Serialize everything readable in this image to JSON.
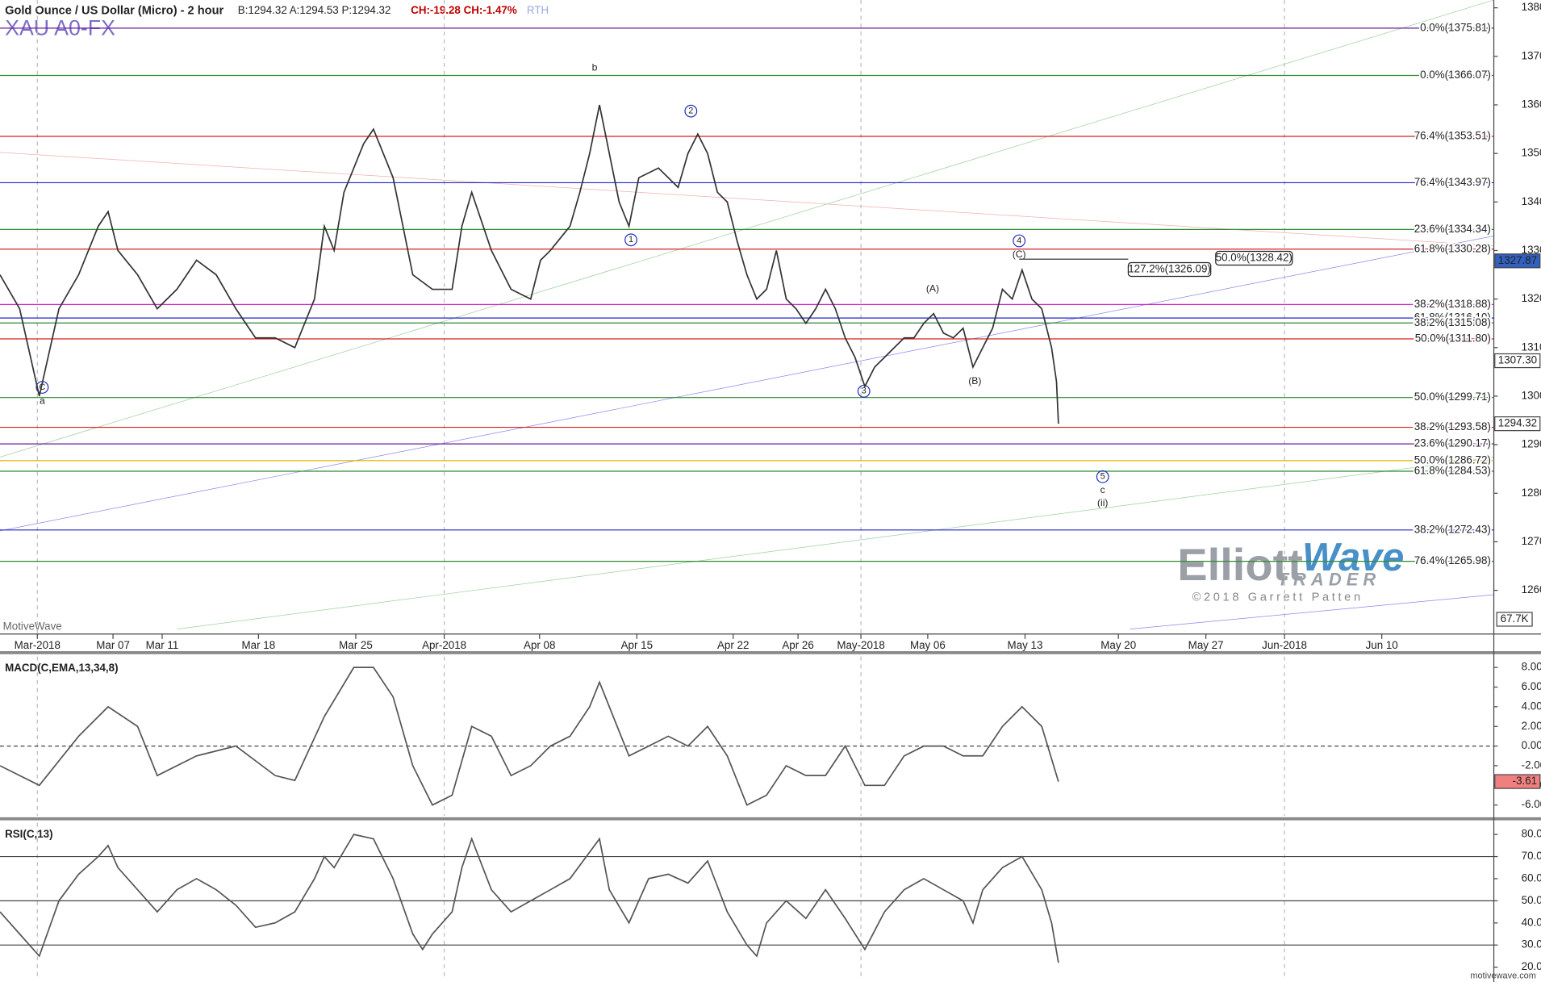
{
  "header": {
    "title": "Gold Ounce / US Dollar (Micro) - 2 hour",
    "quote": "B:1294.32 A:1294.53 P:1294.32",
    "change": "CH:-19.28 CH:-1.47%",
    "session": "RTH",
    "symbol": "XAU A0-FX",
    "watermark": "MotiveWave",
    "footer": "motivewave.com"
  },
  "logo": {
    "name1": "Elliott",
    "name2": "Wave",
    "sub": "TRADER",
    "copyright": "©2018 Garrett Patten"
  },
  "chart_data": [
    {
      "type": "line",
      "x": [
        0,
        2,
        4,
        6,
        8,
        10,
        11,
        12,
        14,
        16,
        18,
        20,
        22,
        24,
        26,
        28,
        30,
        32,
        33,
        34,
        35,
        37,
        38,
        39,
        40,
        41,
        42,
        44,
        46,
        47,
        48,
        50,
        52,
        54,
        55,
        56,
        58,
        59,
        60,
        61,
        62,
        63,
        64,
        65,
        67,
        69,
        70,
        71,
        72,
        73,
        74,
        75,
        76,
        77,
        78,
        79,
        80,
        81,
        82,
        83,
        84,
        85,
        86,
        87,
        88,
        89,
        90,
        91,
        92,
        93,
        94,
        95,
        96,
        97,
        98,
        99,
        100,
        101,
        102,
        103,
        104,
        105,
        106,
        107,
        107.5,
        107.7
      ],
      "series": [
        {
          "color": "#333333",
          "values": [
            1325,
            1318,
            1300,
            1318,
            1325,
            1335,
            1338,
            1330,
            1325,
            1318,
            1322,
            1328,
            1325,
            1318,
            1312,
            1312,
            1310,
            1320,
            1335,
            1330,
            1342,
            1352,
            1355,
            1350,
            1345,
            1335,
            1325,
            1322,
            1322,
            1335,
            1342,
            1330,
            1322,
            1320,
            1328,
            1330,
            1335,
            1342,
            1350,
            1360,
            1350,
            1340,
            1335,
            1345,
            1347,
            1343,
            1350,
            1354,
            1350,
            1342,
            1340,
            1332,
            1325,
            1320,
            1322,
            1330,
            1320,
            1318,
            1315,
            1318,
            1322,
            1318,
            1312,
            1308,
            1302,
            1306,
            1308,
            1310,
            1312,
            1312,
            1315,
            1317,
            1313,
            1312,
            1314,
            1306,
            1310,
            1314,
            1322,
            1320,
            1326,
            1320,
            1318,
            1310,
            1303,
            1294.32
          ]
        }
      ],
      "xlim": [
        0,
        152
      ],
      "ylim": [
        1251,
        1381.6
      ],
      "xticks": [
        {
          "value": 3.8,
          "label": "Mar-2018"
        },
        {
          "value": 11.5,
          "label": "Mar 07"
        },
        {
          "value": 16.5,
          "label": "Mar 11"
        },
        {
          "value": 26.3,
          "label": "Mar 18"
        },
        {
          "value": 36.2,
          "label": "Mar 25"
        },
        {
          "value": 45.2,
          "label": "Apr-2018"
        },
        {
          "value": 54.9,
          "label": "Apr 08"
        },
        {
          "value": 64.8,
          "label": "Apr 15"
        },
        {
          "value": 74.6,
          "label": "Apr 22"
        },
        {
          "value": 81.2,
          "label": "Apr 26"
        },
        {
          "value": 87.6,
          "label": "May-2018"
        },
        {
          "value": 94.4,
          "label": "May 06"
        },
        {
          "value": 104.3,
          "label": "May 13"
        },
        {
          "value": 113.8,
          "label": "May 20"
        },
        {
          "value": 122.7,
          "label": "May 27"
        },
        {
          "value": 130.7,
          "label": "Jun-2018"
        },
        {
          "value": 140.6,
          "label": "Jun 10"
        }
      ],
      "yticks": [
        {
          "value": 1260,
          "label": "1260.00"
        },
        {
          "value": 1270,
          "label": "1270.00"
        },
        {
          "value": 1280,
          "label": "1280.00"
        },
        {
          "value": 1290,
          "label": "1290.00"
        },
        {
          "value": 1300,
          "label": "1300.00"
        },
        {
          "value": 1310,
          "label": "1310.00"
        },
        {
          "value": 1320,
          "label": "1320.00"
        },
        {
          "value": 1330,
          "label": "1330.00"
        },
        {
          "value": 1340,
          "label": "1340.00"
        },
        {
          "value": 1350,
          "label": "1350.00"
        },
        {
          "value": 1360,
          "label": "1360.00"
        },
        {
          "value": 1370,
          "label": "1370.00"
        },
        {
          "value": 1380,
          "label": "1380.00"
        }
      ],
      "levels": [
        {
          "value": 1375.81,
          "label": "0.0%(1375.81)",
          "color": "#6a1b9a"
        },
        {
          "value": 1366.07,
          "label": "0.0%(1366.07)",
          "color": "#2e8b2e"
        },
        {
          "value": 1353.51,
          "label": "76.4%(1353.51)",
          "color": "#d62020"
        },
        {
          "value": 1343.97,
          "label": "76.4%(1343.97)",
          "color": "#2323c8"
        },
        {
          "value": 1334.34,
          "label": "23.6%(1334.34)",
          "color": "#2e8b2e"
        },
        {
          "value": 1330.28,
          "label": "61.8%(1330.28)",
          "color": "#d62020"
        },
        {
          "value": 1318.88,
          "label": "38.2%(1318.88)",
          "color": "#d020d0"
        },
        {
          "value": 1316.1,
          "label": "61.8%(1316.10)",
          "color": "#2323c8"
        },
        {
          "value": 1315.08,
          "label": "38.2%(1315.08)",
          "color": "#2e8b2e"
        },
        {
          "value": 1311.8,
          "label": "50.0%(1311.80)",
          "color": "#d62020"
        },
        {
          "value": 1299.71,
          "label": "50.0%(1299.71)",
          "color": "#2e8b2e"
        },
        {
          "value": 1293.58,
          "label": "38.2%(1293.58)",
          "color": "#d62020"
        },
        {
          "value": 1290.17,
          "label": "23.6%(1290.17)",
          "color": "#6a1b9a"
        },
        {
          "value": 1286.72,
          "label": "50.0%(1286.72)",
          "color": "#e0b000"
        },
        {
          "value": 1284.53,
          "label": "61.8%(1284.53)",
          "color": "#2e8b2e"
        },
        {
          "value": 1272.43,
          "label": "38.2%(1272.43)",
          "color": "#2323c8"
        },
        {
          "value": 1265.98,
          "label": "76.4%(1265.98)",
          "color": "#2e8b2e"
        }
      ],
      "projections": [
        {
          "value": 1328.42,
          "label": "50.0%(1328.42)"
        },
        {
          "value": 1326.09,
          "label": "127.2%(1326.09)"
        }
      ],
      "annotations": [
        {
          "text": "b",
          "circled": false
        },
        {
          "text": "2",
          "circled": true
        },
        {
          "text": "1",
          "circled": true
        },
        {
          "text": "C",
          "circled": true
        },
        {
          "text": "a",
          "circled": false
        },
        {
          "text": "3",
          "circled": true
        },
        {
          "text": "4",
          "circled": true
        },
        {
          "text": "(C)",
          "circled": false
        },
        {
          "text": "(A)",
          "circled": false
        },
        {
          "text": "(B)",
          "circled": false
        },
        {
          "text": "5",
          "circled": true
        },
        {
          "text": "c",
          "circled": false
        },
        {
          "text": "(ii)",
          "circled": false
        }
      ],
      "markers": [
        {
          "value": 1327.87,
          "color": "#3060c0"
        },
        {
          "value": 1307.3,
          "label": "1307.30",
          "color": "#ffffff"
        },
        {
          "value": 1294.32,
          "color": "#ffffff"
        }
      ],
      "volume_last": {
        "value": 67700,
        "label": "67.7K"
      }
    },
    {
      "type": "line",
      "title": "MACD(C,EMA,13,34,8)",
      "x": [
        0,
        4,
        8,
        11,
        14,
        16,
        20,
        24,
        28,
        30,
        33,
        36,
        38,
        40,
        42,
        44,
        46,
        48,
        50,
        52,
        54,
        56,
        58,
        60,
        61,
        62,
        64,
        66,
        68,
        70,
        72,
        74,
        76,
        78,
        80,
        82,
        84,
        86,
        88,
        90,
        92,
        94,
        96,
        98,
        100,
        102,
        104,
        106,
        107.7
      ],
      "series": [
        {
          "color": "#555555",
          "values": [
            -2,
            -4,
            1,
            4,
            2,
            -3,
            -1,
            0,
            -3,
            -3.5,
            3,
            8,
            8,
            5,
            -2,
            -6,
            -5,
            2,
            1,
            -3,
            -2,
            0,
            1,
            4,
            6.5,
            4,
            -1,
            0,
            1,
            0,
            2,
            -1,
            -6,
            -5,
            -2,
            -3,
            -3,
            0,
            -4,
            -4,
            -1,
            0,
            0,
            -1,
            -1,
            2,
            4,
            2,
            -3.61
          ]
        }
      ],
      "xlim": [
        0,
        152
      ],
      "ylim": [
        -7.1,
        9.1
      ],
      "yticks": [
        {
          "value": -6,
          "label": "-6.00"
        },
        {
          "value": -4,
          "label": "-4.00"
        },
        {
          "value": -2,
          "label": "-2.00"
        },
        {
          "value": 0,
          "label": "0.00"
        },
        {
          "value": 2,
          "label": "2.00"
        },
        {
          "value": 4,
          "label": "4.00"
        },
        {
          "value": 6,
          "label": "6.00"
        },
        {
          "value": 8,
          "label": "8.00"
        }
      ],
      "markers": [
        {
          "value": -3.61,
          "color": "#f08080"
        }
      ]
    },
    {
      "type": "line",
      "title": "RSI(C,13)",
      "x": [
        0,
        2,
        4,
        6,
        8,
        10,
        11,
        12,
        14,
        16,
        18,
        20,
        22,
        24,
        26,
        28,
        30,
        32,
        33,
        34,
        36,
        38,
        40,
        42,
        43,
        44,
        46,
        47,
        48,
        50,
        52,
        54,
        56,
        58,
        60,
        61,
        62,
        64,
        66,
        68,
        70,
        72,
        74,
        76,
        77,
        78,
        80,
        82,
        84,
        86,
        88,
        90,
        92,
        94,
        96,
        98,
        99,
        100,
        102,
        104,
        106,
        107,
        107.7
      ],
      "series": [
        {
          "color": "#555555",
          "values": [
            45,
            35,
            25,
            50,
            62,
            70,
            75,
            65,
            55,
            45,
            55,
            60,
            55,
            48,
            38,
            40,
            45,
            60,
            70,
            65,
            80,
            78,
            60,
            35,
            28,
            35,
            45,
            65,
            78,
            55,
            45,
            50,
            55,
            60,
            72,
            78,
            55,
            40,
            60,
            62,
            58,
            68,
            45,
            30,
            25,
            40,
            50,
            42,
            55,
            42,
            28,
            45,
            55,
            60,
            55,
            50,
            40,
            55,
            65,
            70,
            55,
            40,
            22
          ]
        }
      ],
      "xlim": [
        0,
        152
      ],
      "ylim": [
        14.2,
        85.3
      ],
      "yticks": [
        {
          "value": 20,
          "label": "20.0"
        },
        {
          "value": 30,
          "label": "30.0"
        },
        {
          "value": 40,
          "label": "40.0"
        },
        {
          "value": 50,
          "label": "50.0"
        },
        {
          "value": 60,
          "label": "60.0"
        },
        {
          "value": 70,
          "label": "70.0"
        },
        {
          "value": 80,
          "label": "80.0"
        }
      ],
      "hlines": [
        30,
        50,
        70
      ]
    }
  ]
}
